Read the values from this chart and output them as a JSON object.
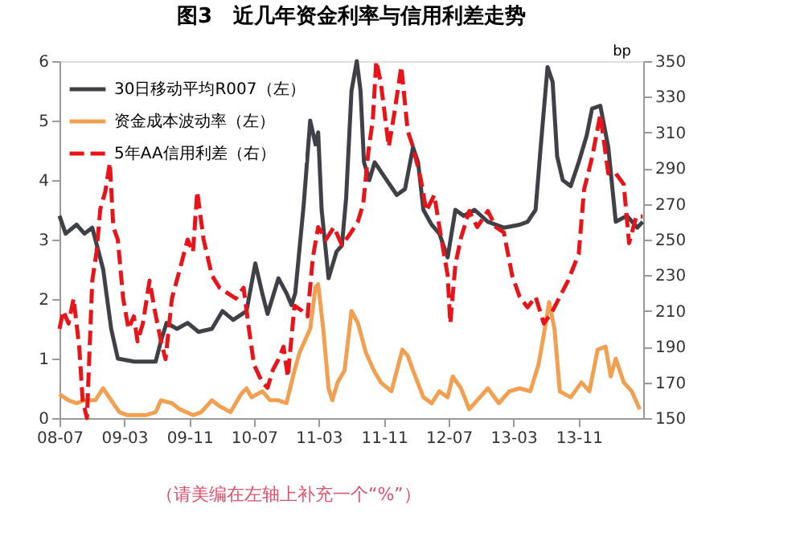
{
  "chart_data": {
    "type": "line",
    "title": "图3　近几年资金利率与信用利差走势",
    "y2label": "bp",
    "annotations": [
      "（请美编在左轴上补充一个“%”）"
    ],
    "xlim": [
      "2008-07-01",
      "2014-07-01"
    ],
    "xticks": [
      {
        "value": "2008-07-01",
        "label": "08-07"
      },
      {
        "value": "2009-03-01",
        "label": "09-03"
      },
      {
        "value": "2009-11-01",
        "label": "09-11"
      },
      {
        "value": "2010-07-01",
        "label": "10-07"
      },
      {
        "value": "2011-03-01",
        "label": "11-03"
      },
      {
        "value": "2011-11-01",
        "label": "11-11"
      },
      {
        "value": "2012-07-01",
        "label": "12-07"
      },
      {
        "value": "2013-03-01",
        "label": "13-03"
      },
      {
        "value": "2013-11-01",
        "label": "13-11"
      }
    ],
    "ylim": [
      0,
      6
    ],
    "yticks": [
      0,
      1,
      2,
      3,
      4,
      5,
      6
    ],
    "y2lim": [
      150,
      350
    ],
    "y2ticks": [
      150,
      170,
      190,
      210,
      230,
      250,
      270,
      290,
      310,
      330,
      350
    ],
    "grid": false,
    "legend": "top left",
    "marker": "none",
    "series": [
      {
        "name": "30日移动平均R007（左）",
        "color": "#404048",
        "line_style": "solid",
        "x": [
          "2008-07-01",
          "2008-07-24",
          "2008-09-03",
          "2008-10-03",
          "2008-11-01",
          "2008-12-12",
          "2009-01-11",
          "2009-02-05",
          "2009-04-08",
          "2009-06-27",
          "2009-07-17",
          "2009-08-07",
          "2009-09-15",
          "2009-10-25",
          "2009-12-05",
          "2010-01-24",
          "2010-03-05",
          "2010-04-14",
          "2010-06-03",
          "2010-07-06",
          "2010-08-01",
          "2010-08-21",
          "2010-10-01",
          "2010-10-31",
          "2010-11-19",
          "2010-12-03",
          "2011-01-04",
          "2011-01-28",
          "2011-02-17",
          "2011-02-27",
          "2011-03-12",
          "2011-04-07",
          "2011-05-07",
          "2011-05-27",
          "2011-06-12",
          "2011-07-02",
          "2011-07-22",
          "2011-08-05",
          "2011-08-18",
          "2011-09-07",
          "2011-09-27",
          "2011-12-19",
          "2012-01-19",
          "2012-02-18",
          "2012-03-08",
          "2012-03-28",
          "2012-04-28",
          "2012-05-27",
          "2012-06-27",
          "2012-07-26",
          "2012-08-26",
          "2012-10-06",
          "2012-11-25",
          "2013-01-24",
          "2013-03-24",
          "2013-04-23",
          "2013-05-23",
          "2013-06-13",
          "2013-07-07",
          "2013-07-26",
          "2013-08-12",
          "2013-09-02",
          "2013-10-02",
          "2013-11-01",
          "2013-12-01",
          "2013-12-21",
          "2014-01-21",
          "2014-02-20",
          "2014-03-20",
          "2014-05-01",
          "2014-06-09",
          "2014-06-29"
        ],
        "values": [
          3.4,
          3.1,
          3.25,
          3.1,
          3.2,
          2.5,
          1.5,
          1.0,
          0.95,
          0.95,
          1.3,
          1.6,
          1.5,
          1.6,
          1.45,
          1.5,
          1.8,
          1.65,
          1.8,
          2.6,
          2.1,
          1.75,
          2.35,
          2.1,
          1.9,
          2.1,
          3.6,
          5.0,
          4.6,
          4.8,
          3.5,
          2.35,
          2.8,
          2.9,
          3.7,
          5.5,
          6.0,
          5.5,
          4.3,
          4.0,
          4.3,
          3.75,
          3.85,
          4.55,
          4.3,
          3.5,
          3.25,
          3.1,
          2.7,
          3.5,
          3.4,
          3.5,
          3.3,
          3.2,
          3.25,
          3.3,
          3.5,
          4.65,
          5.9,
          5.65,
          4.4,
          4.0,
          3.9,
          4.3,
          4.75,
          5.2,
          5.25,
          4.55,
          3.3,
          3.4,
          3.2,
          3.3
        ]
      },
      {
        "name": "资金成本波动率（左）",
        "color": "#f0a050",
        "line_style": "solid",
        "x": [
          "2008-07-01",
          "2008-08-04",
          "2008-09-03",
          "2008-10-03",
          "2008-11-12",
          "2008-12-12",
          "2009-01-11",
          "2009-02-11",
          "2009-03-13",
          "2009-05-20",
          "2009-06-27",
          "2009-07-17",
          "2009-08-27",
          "2009-09-25",
          "2009-11-14",
          "2009-12-15",
          "2010-01-24",
          "2010-02-22",
          "2010-04-04",
          "2010-05-13",
          "2010-06-03",
          "2010-06-22",
          "2010-08-01",
          "2010-08-31",
          "2010-10-01",
          "2010-10-31",
          "2010-11-30",
          "2010-12-19",
          "2011-01-08",
          "2011-01-28",
          "2011-02-17",
          "2011-02-27",
          "2011-03-18",
          "2011-04-07",
          "2011-04-21",
          "2011-05-11",
          "2011-06-06",
          "2011-07-02",
          "2011-07-26",
          "2011-08-25",
          "2011-09-24",
          "2011-10-20",
          "2011-11-29",
          "2012-01-09",
          "2012-01-29",
          "2012-02-18",
          "2012-03-28",
          "2012-04-28",
          "2012-05-27",
          "2012-06-27",
          "2012-07-16",
          "2012-08-16",
          "2012-09-16",
          "2012-10-26",
          "2012-11-25",
          "2013-01-05",
          "2013-02-14",
          "2013-03-24",
          "2013-05-03",
          "2013-06-03",
          "2013-06-23",
          "2013-07-13",
          "2013-08-02",
          "2013-08-22",
          "2013-10-02",
          "2013-11-11",
          "2013-12-11",
          "2014-01-11",
          "2014-02-10",
          "2014-03-01",
          "2014-03-20",
          "2014-04-19",
          "2014-05-19",
          "2014-06-18"
        ],
        "values": [
          0.4,
          0.3,
          0.25,
          0.3,
          0.3,
          0.5,
          0.3,
          0.1,
          0.05,
          0.05,
          0.1,
          0.3,
          0.25,
          0.15,
          0.05,
          0.1,
          0.3,
          0.2,
          0.1,
          0.4,
          0.5,
          0.35,
          0.45,
          0.3,
          0.3,
          0.25,
          0.8,
          1.1,
          1.3,
          1.5,
          2.2,
          2.25,
          1.5,
          0.5,
          0.3,
          0.6,
          0.8,
          1.8,
          1.6,
          1.1,
          0.8,
          0.6,
          0.45,
          1.15,
          1.05,
          0.8,
          0.35,
          0.25,
          0.45,
          0.35,
          0.7,
          0.5,
          0.15,
          0.35,
          0.5,
          0.25,
          0.45,
          0.5,
          0.45,
          0.9,
          1.4,
          1.95,
          1.5,
          0.45,
          0.35,
          0.6,
          0.45,
          1.15,
          1.2,
          0.7,
          1.0,
          0.6,
          0.45,
          0.15
        ]
      },
      {
        "name": "5年AA信用利差（右）",
        "color": "#e8141a",
        "line_style": "dashed",
        "axis": "y2",
        "x": [
          "2008-07-01",
          "2008-07-15",
          "2008-08-04",
          "2008-08-23",
          "2008-09-13",
          "2008-09-26",
          "2008-10-12",
          "2008-11-01",
          "2008-11-17",
          "2008-12-01",
          "2008-12-20",
          "2009-01-06",
          "2009-01-19",
          "2009-02-05",
          "2009-02-25",
          "2009-03-17",
          "2009-04-06",
          "2009-04-20",
          "2009-05-10",
          "2009-06-04",
          "2009-06-24",
          "2009-07-17",
          "2009-08-03",
          "2009-08-27",
          "2009-09-25",
          "2009-10-25",
          "2009-11-14",
          "2009-11-30",
          "2009-12-24",
          "2010-01-24",
          "2010-02-22",
          "2010-03-24",
          "2010-04-24",
          "2010-05-23",
          "2010-06-12",
          "2010-07-01",
          "2010-08-01",
          "2010-08-21",
          "2010-09-10",
          "2010-10-01",
          "2010-10-20",
          "2010-11-05",
          "2010-11-30",
          "2010-12-29",
          "2011-01-18",
          "2011-02-07",
          "2011-02-27",
          "2011-03-28",
          "2011-04-27",
          "2011-05-27",
          "2011-06-26",
          "2011-07-26",
          "2011-08-15",
          "2011-09-04",
          "2011-09-20",
          "2011-10-03",
          "2011-10-20",
          "2011-11-19",
          "2011-12-09",
          "2012-01-05",
          "2012-01-29",
          "2012-02-18",
          "2012-03-18",
          "2012-04-08",
          "2012-05-08",
          "2012-05-27",
          "2012-06-27",
          "2012-07-07",
          "2012-07-26",
          "2012-08-16",
          "2012-09-16",
          "2012-10-16",
          "2012-11-25",
          "2012-12-25",
          "2013-01-24",
          "2013-02-24",
          "2013-03-24",
          "2013-04-23",
          "2013-05-23",
          "2013-06-23",
          "2013-07-22",
          "2013-08-22",
          "2013-09-22",
          "2013-11-01",
          "2013-11-21",
          "2013-12-21",
          "2014-01-21",
          "2014-02-20",
          "2014-03-20",
          "2014-04-19",
          "2014-05-09",
          "2014-06-05",
          "2014-06-29"
        ],
        "values": [
          200,
          210,
          203,
          217,
          190,
          160,
          150,
          227,
          243,
          267,
          277,
          293,
          257,
          250,
          217,
          200,
          207,
          193,
          203,
          227,
          210,
          193,
          183,
          217,
          233,
          250,
          243,
          277,
          250,
          230,
          223,
          220,
          217,
          223,
          200,
          180,
          170,
          167,
          177,
          183,
          190,
          173,
          213,
          210,
          207,
          240,
          257,
          250,
          257,
          247,
          253,
          260,
          270,
          300,
          317,
          350,
          338,
          302,
          320,
          347,
          311,
          302,
          284,
          266,
          275,
          257,
          230,
          203,
          236,
          251,
          266,
          257,
          266,
          257,
          254,
          230,
          218,
          212,
          218,
          203,
          209,
          218,
          227,
          242,
          278,
          296,
          320,
          287,
          287,
          281,
          248,
          263,
          263
        ]
      }
    ]
  }
}
